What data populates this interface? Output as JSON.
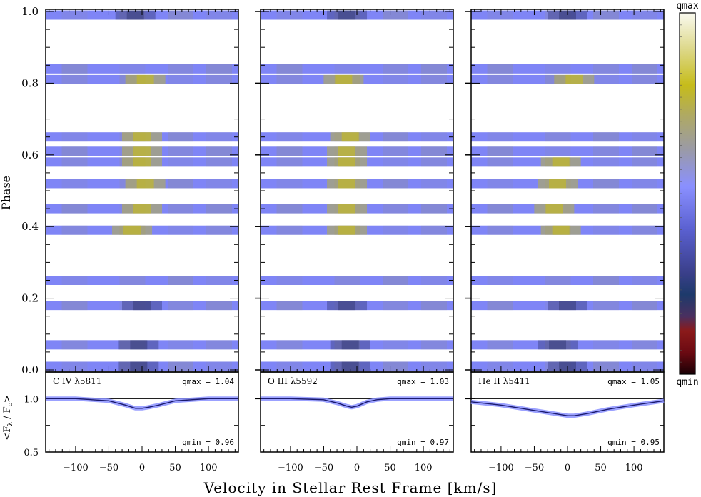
{
  "figure": {
    "xlabel": "Velocity in Stellar Rest Frame [km/s]",
    "ylabel_top": "Phase",
    "ylabel_bottom": "<Fλ / Fc>",
    "colorbar": {
      "max_label": "qmax",
      "min_label": "qmin"
    },
    "colors": {
      "base": "#7f85f6",
      "dark": "#3a3f7d",
      "yellow": "#c6bc1a",
      "gray": "#8f8f98",
      "profile_line": "#1a1a6e",
      "profile_band": "#8a90ff"
    }
  },
  "chart_data": [
    {
      "type": "heatmap",
      "line": "C IV λ5811",
      "qmax_text": "qmax = 1.04",
      "qmin_text": "qmin = 0.96",
      "qmax": 1.04,
      "qmin": 0.96,
      "xlim": [
        -145,
        145
      ],
      "ylim": [
        0,
        1.0
      ],
      "x_ticks": [
        -100,
        -50,
        0,
        50,
        100
      ],
      "y_ticks": [
        0.0,
        0.2,
        0.4,
        0.6,
        0.8,
        1.0
      ],
      "phase_bands": [
        {
          "phase": 0.01,
          "feature": "dark",
          "center": -5
        },
        {
          "phase": 0.07,
          "feature": "dark",
          "center": -5
        },
        {
          "phase": 0.18,
          "feature": "dark",
          "center": 0
        },
        {
          "phase": 0.25,
          "feature": "none",
          "center": 0
        },
        {
          "phase": 0.39,
          "feature": "yellow",
          "center": -15
        },
        {
          "phase": 0.45,
          "feature": "yellow",
          "center": 0
        },
        {
          "phase": 0.52,
          "feature": "yellow",
          "center": 5
        },
        {
          "phase": 0.58,
          "feature": "yellow",
          "center": 0
        },
        {
          "phase": 0.61,
          "feature": "yellow",
          "center": 0
        },
        {
          "phase": 0.65,
          "feature": "yellow",
          "center": 0
        },
        {
          "phase": 0.81,
          "feature": "yellow",
          "center": 5
        },
        {
          "phase": 0.84,
          "feature": "none",
          "center": 0
        },
        {
          "phase": 0.99,
          "feature": "dark",
          "center": -10
        }
      ],
      "mean_profile": {
        "x": [
          -145,
          -100,
          -50,
          -25,
          -10,
          0,
          10,
          25,
          50,
          100,
          145
        ],
        "y": [
          1.0,
          1.0,
          0.98,
          0.94,
          0.91,
          0.91,
          0.92,
          0.94,
          0.98,
          1.0,
          1.0
        ]
      },
      "profile_ylim": [
        0.5,
        1.25
      ],
      "profile_y_ticks": [
        0.5,
        1.0
      ]
    },
    {
      "type": "heatmap",
      "line": "O III λ5592",
      "qmax_text": "qmax = 1.03",
      "qmin_text": "qmin = 0.97",
      "qmax": 1.03,
      "qmin": 0.97,
      "xlim": [
        -145,
        145
      ],
      "ylim": [
        0,
        1.0
      ],
      "x_ticks": [
        -100,
        -50,
        0,
        50,
        100
      ],
      "y_ticks": [
        0.0,
        0.2,
        0.4,
        0.6,
        0.8,
        1.0
      ],
      "phase_bands": [
        {
          "phase": 0.01,
          "feature": "dark",
          "center": -10
        },
        {
          "phase": 0.07,
          "feature": "dark",
          "center": -10
        },
        {
          "phase": 0.18,
          "feature": "dark",
          "center": -15
        },
        {
          "phase": 0.25,
          "feature": "none",
          "center": 0
        },
        {
          "phase": 0.39,
          "feature": "yellow",
          "center": -15
        },
        {
          "phase": 0.45,
          "feature": "yellow",
          "center": -15
        },
        {
          "phase": 0.52,
          "feature": "yellow",
          "center": -15
        },
        {
          "phase": 0.58,
          "feature": "yellow",
          "center": -15
        },
        {
          "phase": 0.61,
          "feature": "yellow",
          "center": -15
        },
        {
          "phase": 0.65,
          "feature": "yellow",
          "center": -10
        },
        {
          "phase": 0.81,
          "feature": "yellow",
          "center": -20
        },
        {
          "phase": 0.84,
          "feature": "none",
          "center": 0
        },
        {
          "phase": 0.99,
          "feature": "dark",
          "center": -15
        }
      ],
      "mean_profile": {
        "x": [
          -145,
          -100,
          -50,
          -30,
          -15,
          -8,
          0,
          15,
          30,
          50,
          100,
          145
        ],
        "y": [
          1.0,
          1.0,
          0.99,
          0.96,
          0.93,
          0.92,
          0.93,
          0.97,
          0.99,
          1.0,
          1.0,
          1.0
        ]
      },
      "profile_ylim": [
        0.5,
        1.25
      ],
      "profile_y_ticks": [
        0.5,
        1.0
      ]
    },
    {
      "type": "heatmap",
      "line": "He II λ5411",
      "qmax_text": "qmax = 1.05",
      "qmin_text": "qmin = 0.95",
      "qmax": 1.05,
      "qmin": 0.95,
      "xlim": [
        -145,
        145
      ],
      "ylim": [
        0,
        1.0
      ],
      "x_ticks": [
        -100,
        -50,
        0,
        50,
        100
      ],
      "y_ticks": [
        0.0,
        0.2,
        0.4,
        0.6,
        0.8,
        1.0
      ],
      "phase_bands": [
        {
          "phase": 0.01,
          "feature": "dark",
          "center": 0
        },
        {
          "phase": 0.07,
          "feature": "dark",
          "center": -15
        },
        {
          "phase": 0.18,
          "feature": "dark",
          "center": 0
        },
        {
          "phase": 0.25,
          "feature": "none",
          "center": 0
        },
        {
          "phase": 0.39,
          "feature": "yellow",
          "center": -10
        },
        {
          "phase": 0.45,
          "feature": "yellow",
          "center": -20
        },
        {
          "phase": 0.52,
          "feature": "yellow",
          "center": -15
        },
        {
          "phase": 0.58,
          "feature": "yellow",
          "center": -10
        },
        {
          "phase": 0.61,
          "feature": "none",
          "center": 0
        },
        {
          "phase": 0.65,
          "feature": "none",
          "center": 0
        },
        {
          "phase": 0.81,
          "feature": "yellow",
          "center": 10
        },
        {
          "phase": 0.84,
          "feature": "none",
          "center": 0
        },
        {
          "phase": 0.99,
          "feature": "dark",
          "center": 0
        }
      ],
      "mean_profile": {
        "x": [
          -145,
          -100,
          -50,
          -20,
          0,
          10,
          30,
          60,
          100,
          145
        ],
        "y": [
          0.97,
          0.94,
          0.89,
          0.86,
          0.84,
          0.84,
          0.86,
          0.9,
          0.94,
          0.98
        ]
      },
      "profile_ylim": [
        0.5,
        1.25
      ],
      "profile_y_ticks": [
        0.5,
        1.0
      ]
    }
  ]
}
